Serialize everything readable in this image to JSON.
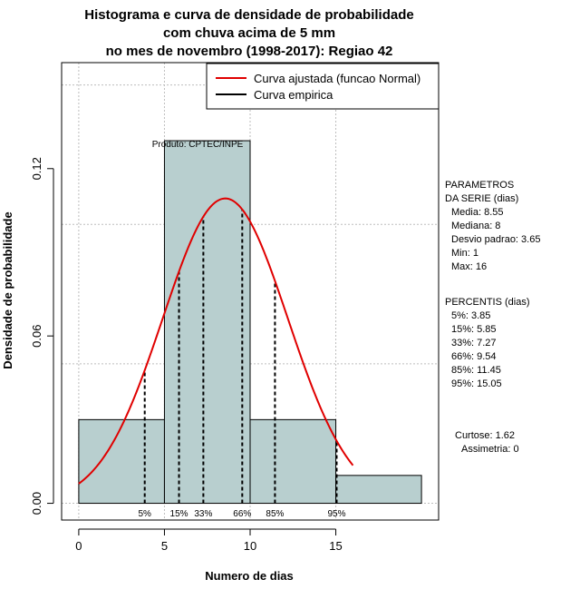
{
  "colors": {
    "bar_fill": "#b8cfcf",
    "fit_curve": "#e00000",
    "empirical": "#000000",
    "grid": "#bdbdbd"
  },
  "chart_data": {
    "type": "bar",
    "title_lines": [
      "Histograma e curva de densidade de probabilidade",
      "com chuva acima de 5 mm",
      "no mes de novembro (1998-2017): Regiao 42"
    ],
    "xlabel": "Numero de dias",
    "ylabel": "Densidade de probabilidade",
    "xlim": [
      -1,
      21
    ],
    "ylim": [
      -0.006,
      0.158
    ],
    "x_ticks": [
      0,
      5,
      10,
      15
    ],
    "x_tick_labels": [
      "0",
      "5",
      "10",
      "15"
    ],
    "y_ticks": [
      0.0,
      0.06,
      0.12
    ],
    "y_tick_labels": [
      "0.00",
      "0.06",
      "0.12"
    ],
    "grid": true,
    "x_grid": [
      0,
      5,
      10,
      15
    ],
    "y_grid": [
      0.0,
      0.05,
      0.1,
      0.15
    ],
    "histogram": [
      {
        "x0": 0,
        "x1": 5,
        "density": 0.03
      },
      {
        "x0": 5,
        "x1": 10,
        "density": 0.13
      },
      {
        "x0": 10,
        "x1": 15,
        "density": 0.03
      },
      {
        "x0": 15,
        "x1": 20,
        "density": 0.01
      }
    ],
    "normal_fit": {
      "mean": 8.55,
      "sd": 3.65,
      "x_from": 0,
      "x_to": 16
    },
    "percentiles": [
      {
        "label": "5%",
        "x": 3.85
      },
      {
        "label": "15%",
        "x": 5.85
      },
      {
        "label": "33%",
        "x": 7.27
      },
      {
        "label": "66%",
        "x": 9.54
      },
      {
        "label": "85%",
        "x": 11.45
      },
      {
        "label": "95%",
        "x": 15.05
      }
    ],
    "legend": {
      "position": "top-right",
      "entries": [
        {
          "label": "Curva ajustada (funcao Normal)",
          "color": "#e00000"
        },
        {
          "label": "Curva empirica",
          "color": "#000000"
        }
      ]
    },
    "credit": "Produto: CPTEC/INPE",
    "side_panel": {
      "params_lines": [
        "PARAMETROS",
        "DA SERIE (dias)",
        "Media: 8.55",
        "Mediana: 8",
        "Desvio padrao: 3.65",
        "Min: 1",
        "Max: 16"
      ],
      "percentis_lines": [
        "PERCENTIS (dias)",
        "5%: 3.85",
        "15%: 5.85",
        "33%: 7.27",
        "66%: 9.54",
        "85%: 11.45",
        "95%: 15.05"
      ],
      "stats_lines": [
        "Curtose: 1.62",
        "Assimetria: 0"
      ]
    }
  }
}
